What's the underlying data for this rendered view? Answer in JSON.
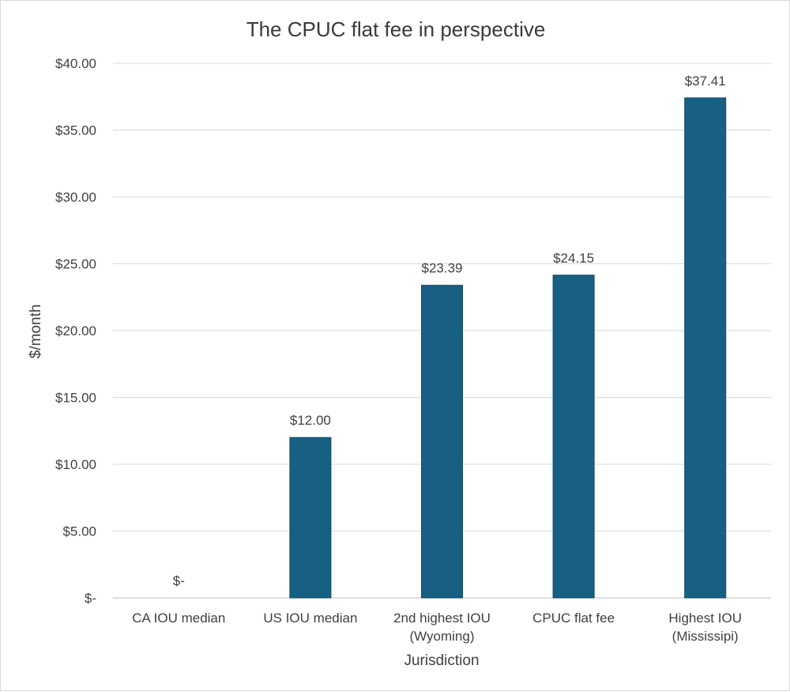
{
  "chart_data": {
    "type": "bar",
    "title": "The CPUC flat fee in perspective",
    "xlabel": "Jurisdiction",
    "ylabel": "$/month",
    "categories": [
      [
        "CA IOU median"
      ],
      [
        "US IOU median"
      ],
      [
        "2nd highest IOU",
        "(Wyoming)"
      ],
      [
        "CPUC flat fee"
      ],
      [
        "Highest IOU",
        "(Mississipi)"
      ]
    ],
    "values": [
      0,
      12.0,
      23.39,
      24.15,
      37.41
    ],
    "data_labels": [
      "$-",
      "$12.00",
      "$23.39",
      "$24.15",
      "$37.41"
    ],
    "ylim": [
      0,
      40
    ],
    "yticks": [
      0,
      5,
      10,
      15,
      20,
      25,
      30,
      35,
      40
    ],
    "ytick_labels": [
      "$-",
      "$5.00",
      "$10.00",
      "$15.00",
      "$20.00",
      "$25.00",
      "$30.00",
      "$35.00",
      "$40.00"
    ],
    "grid": true,
    "bar_color": "#176083"
  }
}
